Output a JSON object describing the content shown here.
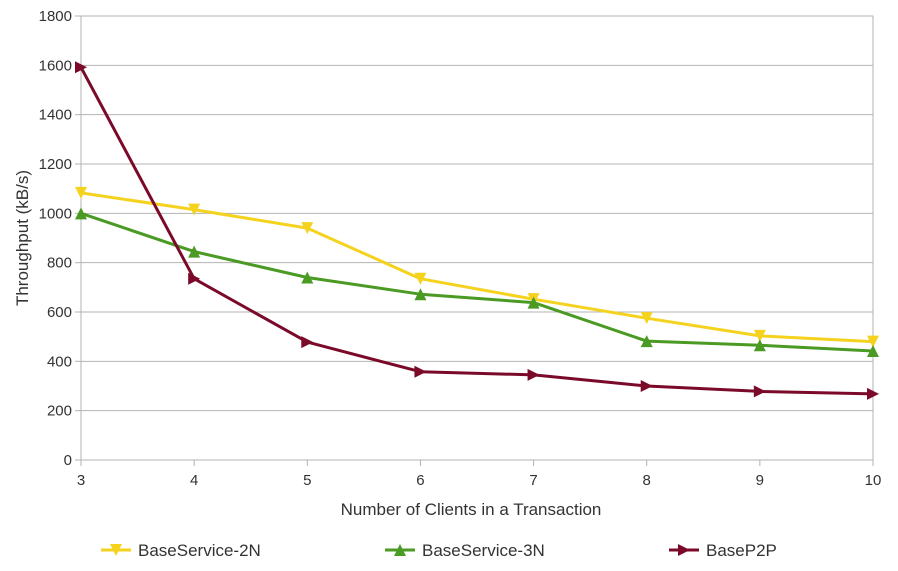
{
  "chart_data": {
    "type": "line",
    "title": "",
    "xlabel": "Number of Clients in a Transaction",
    "ylabel": "Throughput (kB/s)",
    "x": [
      3,
      4,
      5,
      6,
      7,
      8,
      9,
      10
    ],
    "xlim": [
      3,
      10
    ],
    "ylim": [
      0,
      1800
    ],
    "yticks": [
      0,
      200,
      400,
      600,
      800,
      1000,
      1200,
      1400,
      1600,
      1800
    ],
    "grid": true,
    "legend_position": "bottom",
    "series": [
      {
        "name": "BaseService-2N",
        "color": "#f5d21e",
        "marker": "triangle-down",
        "values": [
          1083,
          1015,
          940,
          735,
          652,
          575,
          503,
          480
        ]
      },
      {
        "name": "BaseService-3N",
        "color": "#4a9a23",
        "marker": "triangle-up",
        "values": [
          1000,
          845,
          740,
          672,
          638,
          482,
          465,
          442
        ]
      },
      {
        "name": "BaseP2P",
        "color": "#7b0a2a",
        "marker": "triangle-right",
        "values": [
          1592,
          735,
          478,
          358,
          345,
          300,
          278,
          268
        ]
      }
    ]
  }
}
